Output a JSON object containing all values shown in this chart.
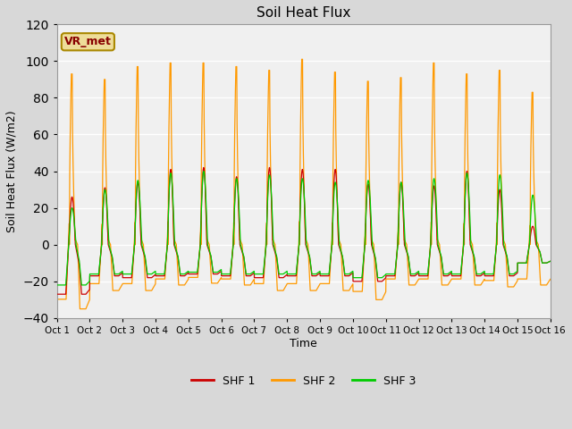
{
  "title": "Soil Heat Flux",
  "xlabel": "Time",
  "ylabel": "Soil Heat Flux (W/m2)",
  "ylim": [
    -40,
    120
  ],
  "xlim": [
    0,
    15
  ],
  "outer_bg": "#d8d8d8",
  "plot_bg": "#f0f0f0",
  "grid_color": "white",
  "colors": {
    "SHF 1": "#cc0000",
    "SHF 2": "#ff9900",
    "SHF 3": "#00cc00"
  },
  "xtick_labels": [
    "Oct 1",
    "Oct 2",
    "Oct 3",
    "Oct 4",
    "Oct 5",
    "Oct 6",
    "Oct 7",
    "Oct 8",
    "Oct 9",
    "Oct 10",
    "Oct 11",
    "Oct 12",
    "Oct 13",
    "Oct 14",
    "Oct 15",
    "Oct 16"
  ],
  "ytick_values": [
    -40,
    -20,
    0,
    20,
    40,
    60,
    80,
    100,
    120
  ],
  "legend_box_facecolor": "#eedd99",
  "legend_box_edgecolor": "#aa8800",
  "legend_box_text": "VR_met",
  "legend_box_text_color": "#880000",
  "days": 15,
  "pts_per_day": 200,
  "day_peaks_shf2": [
    93,
    90,
    97,
    99,
    99,
    97,
    95,
    101,
    94,
    89,
    91,
    99,
    93,
    95,
    83
  ],
  "day_peaks_shf1": [
    26,
    31,
    34,
    41,
    42,
    37,
    42,
    41,
    41,
    33,
    34,
    32,
    40,
    30,
    10
  ],
  "day_peaks_shf3": [
    20,
    30,
    35,
    39,
    40,
    36,
    38,
    36,
    34,
    35,
    34,
    36,
    39,
    38,
    27
  ],
  "day_troughs_shf2": [
    -35,
    -25,
    -25,
    -22,
    -21,
    -22,
    -25,
    -25,
    -25,
    -30,
    -22,
    -22,
    -22,
    -23,
    -22
  ],
  "day_troughs_shf1": [
    -27,
    -17,
    -18,
    -17,
    -16,
    -17,
    -18,
    -17,
    -17,
    -20,
    -17,
    -17,
    -17,
    -17,
    -10
  ],
  "day_troughs_shf3": [
    -22,
    -16,
    -16,
    -16,
    -15,
    -16,
    -16,
    -16,
    -16,
    -18,
    -16,
    -16,
    -16,
    -16,
    -10
  ]
}
